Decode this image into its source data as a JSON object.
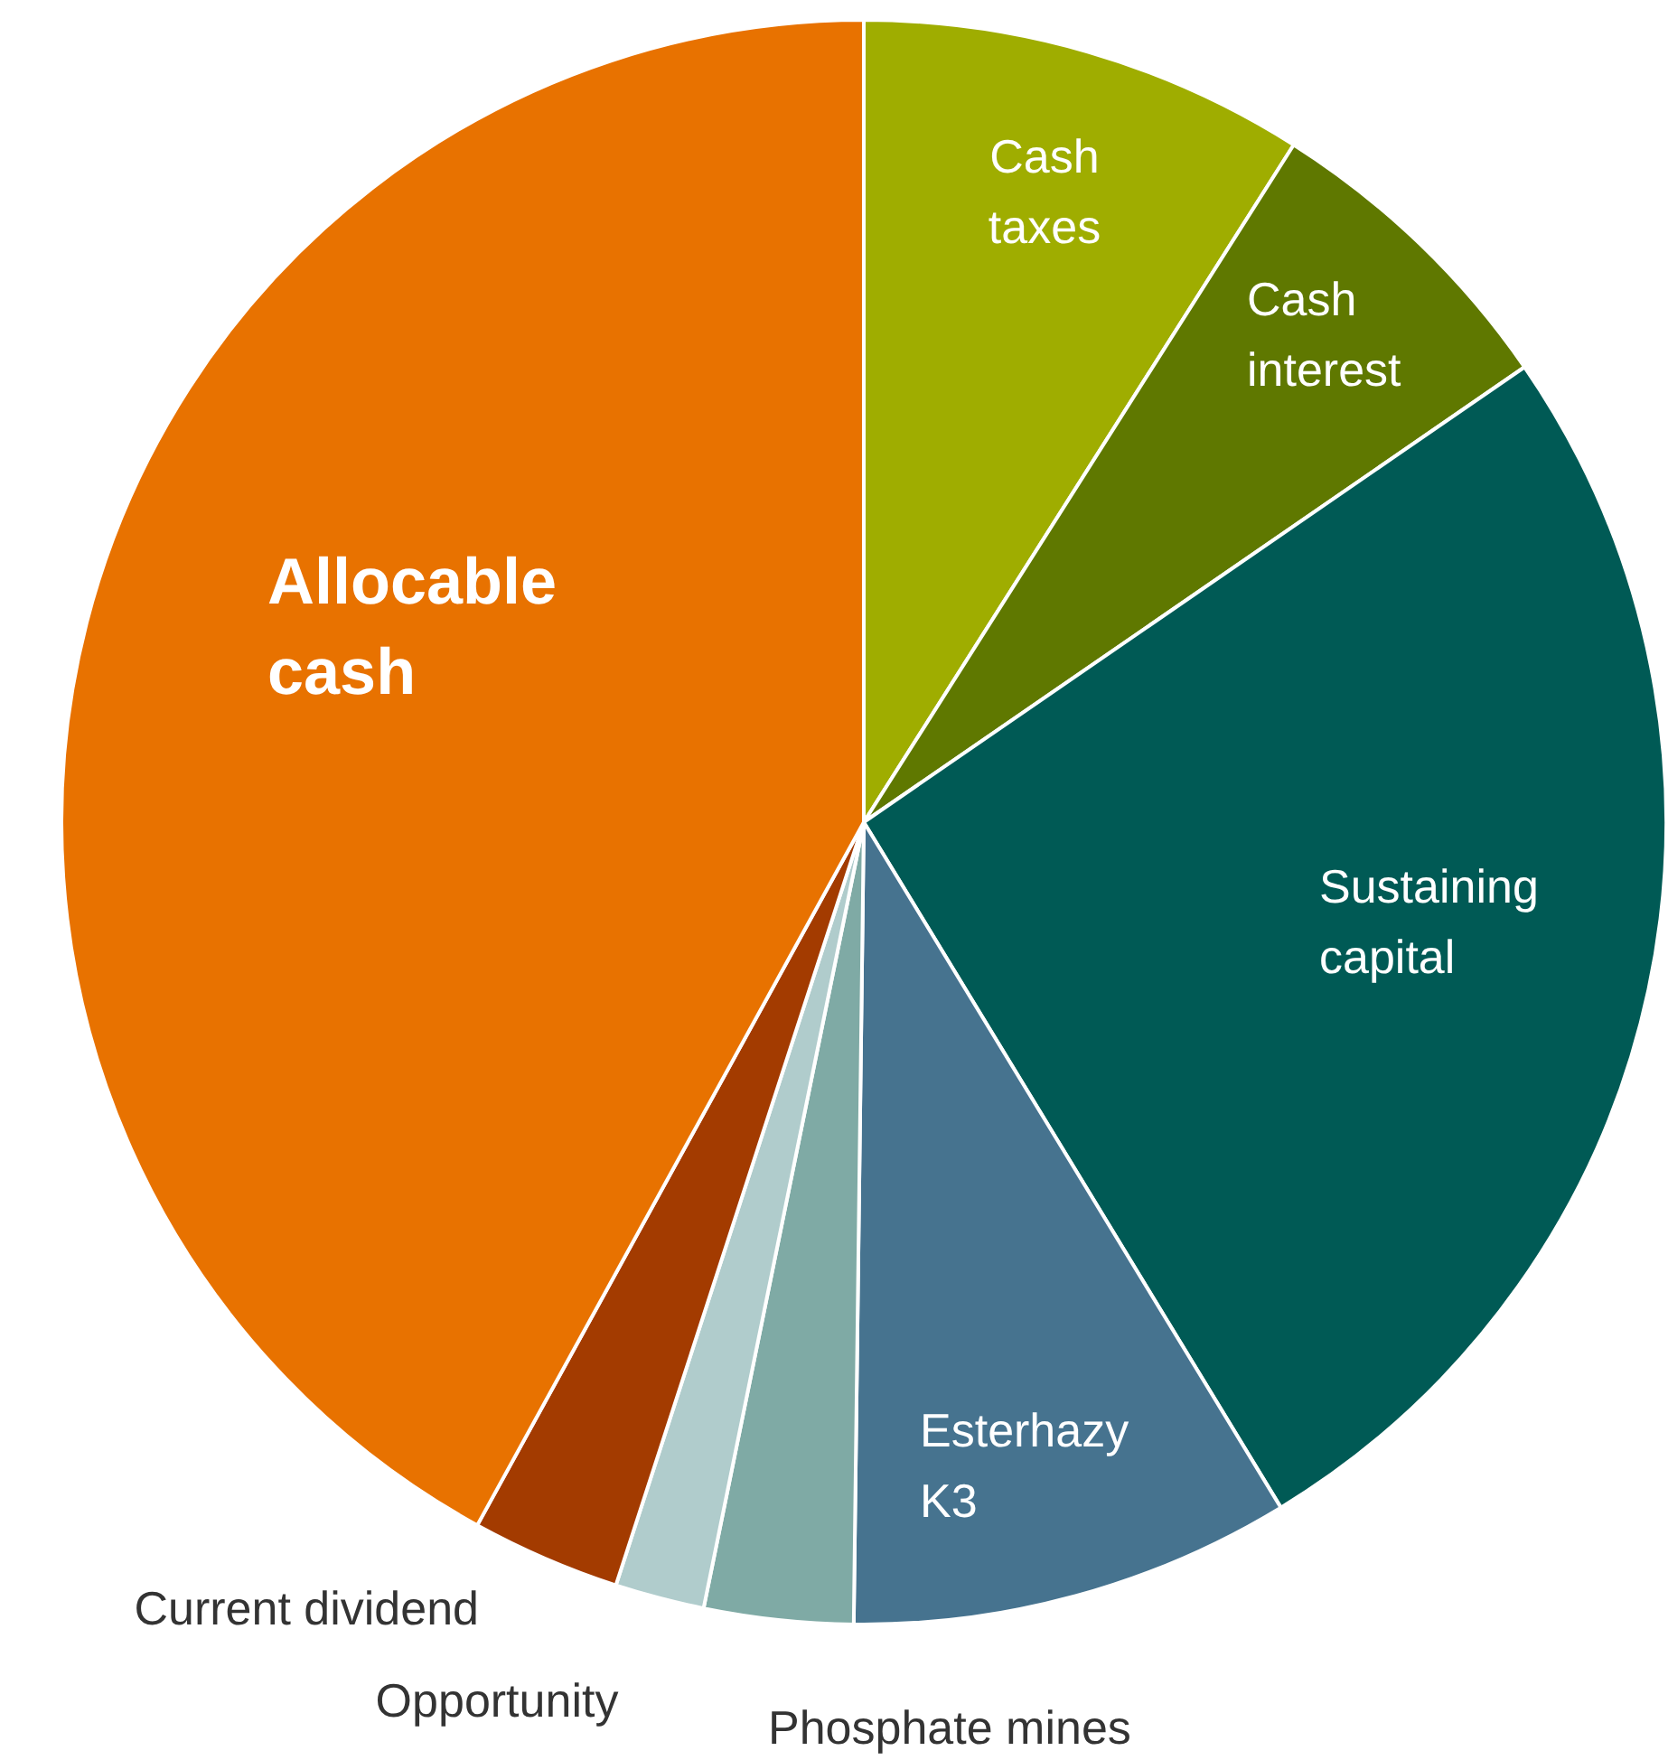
{
  "chart_data": {
    "type": "pie",
    "categories": [
      "Cash taxes",
      "Cash interest",
      "Sustaining capital",
      "Esterhazy K3",
      "Phosphate mines",
      "Opportunity",
      "Current dividend",
      "Allocable cash"
    ],
    "values": [
      9.0,
      6.4,
      25.9,
      8.9,
      3.0,
      1.8,
      3.0,
      42.0
    ],
    "colors": [
      "#9fad00",
      "#5f7800",
      "#005a55",
      "#46738f",
      "#7faaa5",
      "#b0cccc",
      "#a33b00",
      "#e87200"
    ]
  }
}
